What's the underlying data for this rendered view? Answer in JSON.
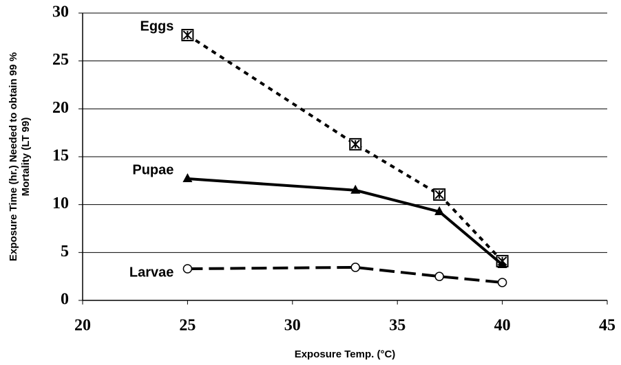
{
  "chart_data": {
    "type": "line",
    "xlabel": "Exposure Temp.  (°C)",
    "ylabel": [
      "Exposure Time (hr.) Needed to obtain 99 %",
      "Mortality (LT 99)"
    ],
    "x": [
      25,
      33,
      37,
      40
    ],
    "series": [
      {
        "name": "Eggs",
        "color": "#000000",
        "marker": "boxcross",
        "dash": "7,7",
        "values": [
          27.7,
          16.3,
          11.05,
          4.1
        ]
      },
      {
        "name": "Pupae",
        "color": "#000000",
        "marker": "triangle",
        "dash": "none",
        "values": [
          12.7,
          11.5,
          9.26,
          3.73
        ]
      },
      {
        "name": "Larvae",
        "color": "#000000",
        "marker": "circle",
        "dash": "22,9",
        "values": [
          3.3,
          3.45,
          2.5,
          1.87
        ]
      }
    ],
    "xlim": [
      20,
      45
    ],
    "xticks": [
      20,
      25,
      30,
      35,
      40,
      45
    ],
    "ylim": [
      0,
      30
    ],
    "yticks": [
      0,
      5,
      10,
      15,
      20,
      25,
      30
    ],
    "grid": true
  }
}
